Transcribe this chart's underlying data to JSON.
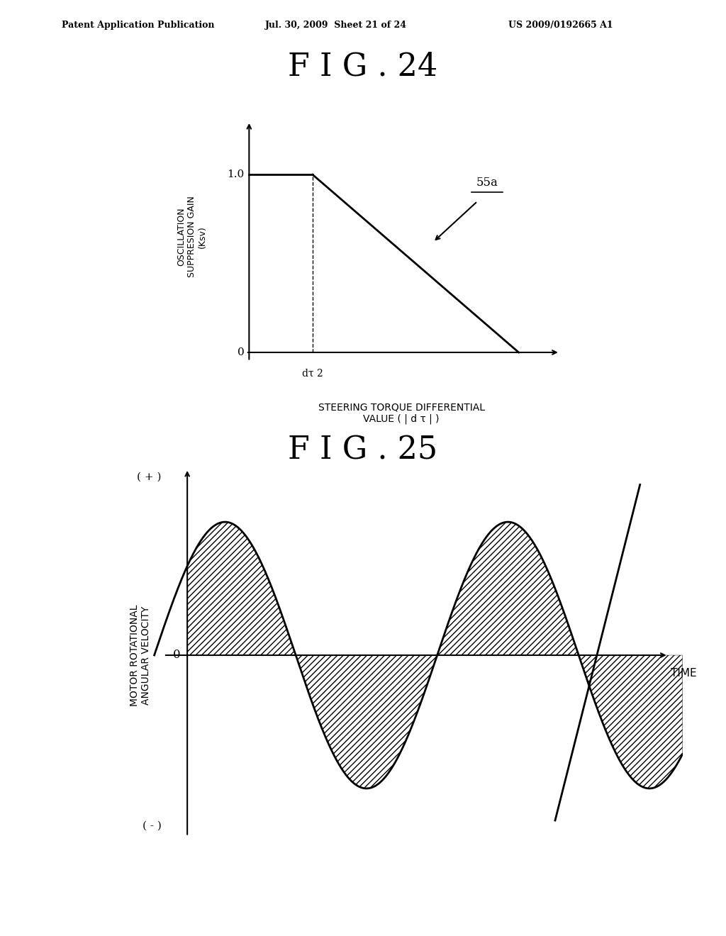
{
  "background_color": "#ffffff",
  "header_text": "Patent Application Publication",
  "header_date": "Jul. 30, 2009  Sheet 21 of 24",
  "header_patent": "US 2009/0192665 A1",
  "fig24_title": "F I G . 24",
  "fig25_title": "F I G . 25",
  "fig24_ylabel_line1": "OSCILLATION",
  "fig24_ylabel_line2": "SUPPRESION GAIN",
  "fig24_ylabel_line3": "(Ksv)",
  "fig24_xlabel_line1": "STEERING TORQUE DIFFERENTIAL",
  "fig24_xlabel_line2": "VALUE ( | d τ | )",
  "fig24_y1_label": "1.0",
  "fig24_y0_label": "0",
  "fig24_xtick_label": "dτ 2",
  "fig24_annotation": "55a",
  "fig25_ylabel_line1": "MOTOR ROTATIONAL",
  "fig25_ylabel_line2": "ANGULAR VELOCITY",
  "fig25_xlabel": "TIME",
  "fig25_ypos_label": "( + )",
  "fig25_yneg_label": "( - )",
  "fig25_y0_label": "0"
}
